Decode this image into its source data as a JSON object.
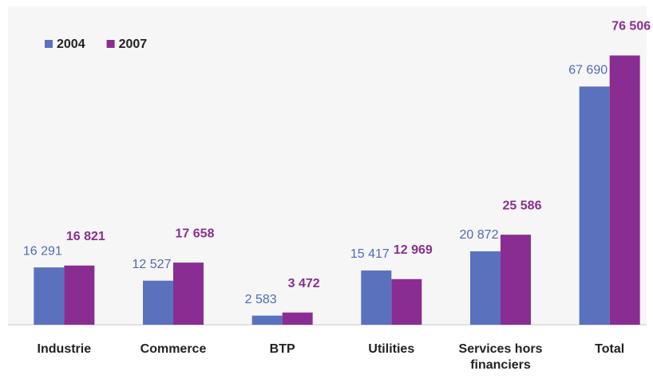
{
  "chart_data": {
    "type": "bar",
    "categories": [
      "Industrie",
      "Commerce",
      "BTP",
      "Utilities",
      "Services hors financiers",
      "Total"
    ],
    "series": [
      {
        "name": "2004",
        "color": "#5a72bd",
        "label_color": "#4f6cb3",
        "values": [
          16291,
          12527,
          2583,
          15417,
          20872,
          67690
        ],
        "value_labels": [
          "16 291",
          "12 527",
          "2 583",
          "15 417",
          "20 872",
          "67 690"
        ]
      },
      {
        "name": "2007",
        "color": "#8a2d92",
        "label_color": "#8b2f8f",
        "values": [
          16821,
          17658,
          3472,
          12969,
          25586,
          76506
        ],
        "value_labels": [
          "16 821",
          "17 658",
          "3 472",
          "12 969",
          "25 586",
          "76 506"
        ]
      }
    ],
    "ylim": [
      0,
      90000
    ],
    "legend": "top-left"
  }
}
